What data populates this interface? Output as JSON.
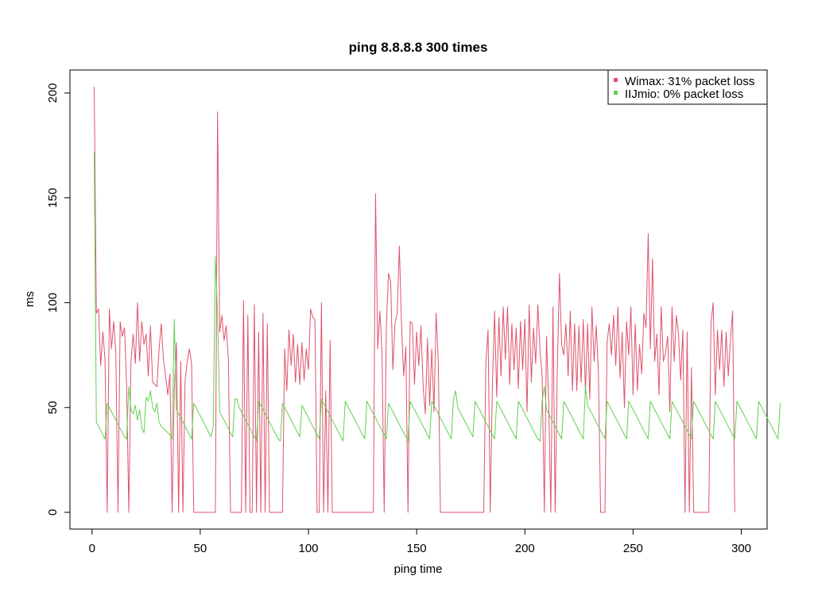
{
  "chart_data": {
    "type": "line",
    "title": "ping 8.8.8.8 300 times",
    "xlabel": "ping time",
    "ylabel": "ms",
    "xlim": [
      1,
      300
    ],
    "ylim": [
      0,
      203
    ],
    "x_ticks": [
      0,
      50,
      100,
      150,
      200,
      250,
      300
    ],
    "y_ticks": [
      0,
      50,
      100,
      150,
      200
    ],
    "grid": false,
    "legend_position": "top-right",
    "series": [
      {
        "name": "Wimax: 31% packet loss",
        "color": "#DF536B",
        "values": [
          203,
          95,
          97,
          70,
          86,
          73,
          0,
          97,
          78,
          91,
          76,
          0,
          91,
          84,
          88,
          60,
          0,
          72,
          85,
          71,
          100,
          72,
          91,
          80,
          85,
          65,
          89,
          62,
          61,
          60,
          78,
          90,
          73,
          65,
          56,
          66,
          0,
          58,
          81,
          0,
          72,
          0,
          63,
          72,
          78,
          71,
          0,
          0,
          0,
          0,
          0,
          0,
          0,
          0,
          0,
          0,
          0,
          191,
          86,
          94,
          82,
          89,
          73,
          0,
          0,
          0,
          0,
          0,
          0,
          101,
          0,
          94,
          0,
          0,
          99,
          0,
          86,
          0,
          95,
          0,
          90,
          0,
          0,
          0,
          0,
          0,
          0,
          0,
          78,
          58,
          87,
          70,
          85,
          62,
          80,
          61,
          81,
          63,
          78,
          68,
          97,
          93,
          92,
          0,
          0,
          100,
          0,
          58,
          0,
          82,
          0,
          0,
          0,
          0,
          0,
          0,
          0,
          0,
          0,
          0,
          0,
          0,
          0,
          0,
          0,
          0,
          0,
          0,
          0,
          0,
          152,
          78,
          96,
          76,
          0,
          89,
          114,
          110,
          68,
          90,
          95,
          127,
          90,
          65,
          79,
          0,
          91,
          90,
          61,
          86,
          70,
          89,
          60,
          47,
          83,
          51,
          78,
          48,
          95,
          72,
          0,
          0,
          0,
          0,
          0,
          0,
          0,
          0,
          0,
          0,
          0,
          0,
          0,
          0,
          0,
          0,
          0,
          0,
          0,
          0,
          0,
          72,
          87,
          0,
          60,
          96,
          55,
          93,
          65,
          98,
          73,
          98,
          61,
          90,
          68,
          88,
          59,
          91,
          68,
          92,
          48,
          99,
          62,
          88,
          71,
          99,
          77,
          65,
          0,
          84,
          53,
          0,
          98,
          0,
          69,
          114,
          80,
          75,
          90,
          65,
          96,
          58,
          90,
          58,
          89,
          62,
          92,
          57,
          90,
          54,
          98,
          72,
          89,
          67,
          0,
          0,
          0,
          81,
          90,
          75,
          94,
          70,
          98,
          64,
          86,
          50,
          91,
          75,
          98,
          56,
          90,
          58,
          80,
          66,
          95,
          88,
          133,
          78,
          121,
          72,
          85,
          56,
          98,
          72,
          76,
          84,
          48,
          98,
          72,
          94,
          85,
          63,
          87,
          0,
          86,
          0,
          69,
          0,
          0,
          0,
          0,
          0,
          0,
          0,
          0,
          90,
          100,
          56,
          87,
          68,
          87,
          60,
          86,
          65,
          82,
          96,
          0
        ]
      },
      {
        "name": "IIJmio: 0% packet loss",
        "color": "#61D04F",
        "values": [
          172,
          43,
          41,
          39,
          37,
          35,
          52,
          50,
          48,
          46,
          44,
          42,
          40,
          38,
          36,
          35,
          60,
          49,
          47,
          51,
          44,
          49,
          40,
          38,
          55,
          53,
          58,
          50,
          48,
          52,
          43,
          41,
          40,
          39,
          38,
          37,
          35,
          92,
          49,
          47,
          45,
          43,
          41,
          39,
          37,
          35,
          52,
          50,
          48,
          46,
          44,
          42,
          40,
          38,
          36,
          41,
          122,
          95,
          48,
          46,
          44,
          42,
          40,
          38,
          36,
          54,
          54,
          50,
          48,
          46,
          44,
          42,
          40,
          38,
          36,
          34,
          53,
          51,
          49,
          47,
          45,
          43,
          41,
          39,
          37,
          35,
          34,
          52,
          50,
          48,
          46,
          44,
          42,
          40,
          38,
          36,
          51,
          49,
          47,
          45,
          43,
          41,
          39,
          37,
          35,
          54,
          52,
          50,
          48,
          46,
          44,
          42,
          40,
          38,
          36,
          34,
          53,
          51,
          49,
          47,
          45,
          43,
          41,
          39,
          37,
          35,
          53,
          51,
          49,
          47,
          45,
          43,
          41,
          39,
          37,
          35,
          52,
          50,
          48,
          46,
          44,
          42,
          40,
          38,
          36,
          34,
          53,
          51,
          49,
          47,
          45,
          43,
          41,
          39,
          37,
          35,
          53,
          51,
          49,
          47,
          45,
          43,
          41,
          39,
          37,
          35,
          54,
          58,
          50,
          48,
          46,
          44,
          42,
          40,
          38,
          36,
          53,
          51,
          49,
          47,
          45,
          43,
          41,
          39,
          37,
          35,
          53,
          51,
          49,
          47,
          45,
          43,
          41,
          39,
          37,
          35,
          53,
          51,
          49,
          47,
          45,
          43,
          41,
          39,
          37,
          35,
          34,
          53,
          60,
          49,
          47,
          45,
          43,
          41,
          39,
          37,
          35,
          53,
          51,
          49,
          47,
          45,
          43,
          41,
          39,
          37,
          35,
          60,
          51,
          49,
          47,
          45,
          43,
          41,
          39,
          37,
          35,
          53,
          51,
          49,
          47,
          45,
          43,
          41,
          39,
          37,
          35,
          53,
          51,
          49,
          47,
          45,
          43,
          41,
          39,
          37,
          35,
          53,
          51,
          49,
          47,
          45,
          43,
          41,
          39,
          37,
          35,
          53,
          51,
          49,
          47,
          45,
          43,
          41,
          39,
          37,
          35,
          53,
          51,
          49,
          47,
          45,
          43,
          41,
          39,
          37,
          35,
          53,
          51,
          49,
          47,
          45,
          43,
          41,
          39,
          37,
          35,
          53,
          51,
          49,
          47,
          45,
          43,
          41,
          39,
          37,
          35,
          53,
          51,
          49,
          47,
          45,
          43,
          41,
          39,
          37,
          35,
          52
        ]
      }
    ]
  }
}
